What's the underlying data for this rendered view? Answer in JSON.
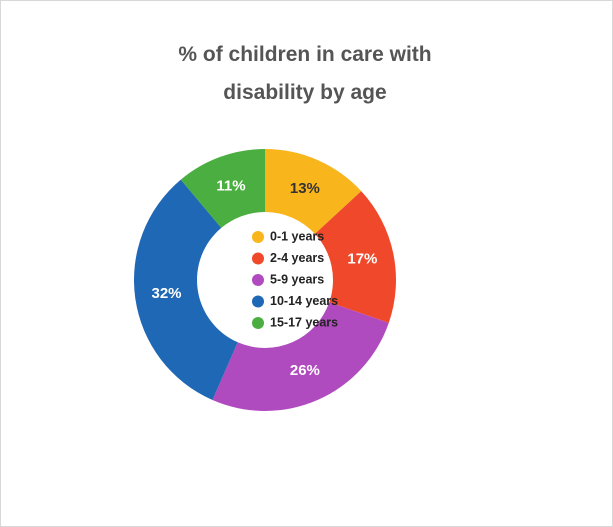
{
  "chart_data": {
    "type": "pie",
    "title": "% of children in care with disability by age",
    "categories": [
      "0-1 years",
      "2-4 years",
      "5-9 years",
      "10-14 years",
      "15-17 years"
    ],
    "values": [
      13,
      17,
      26,
      32,
      11
    ],
    "value_labels": [
      "13%",
      "17%",
      "26%",
      "32%",
      "11%"
    ],
    "colors": [
      "#f9b51c",
      "#f0482a",
      "#b04bbf",
      "#1f68b5",
      "#4bae40"
    ],
    "label_colors": [
      "#333333",
      "#ffffff",
      "#ffffff",
      "#ffffff",
      "#ffffff"
    ],
    "donut": true,
    "legend": "center"
  }
}
